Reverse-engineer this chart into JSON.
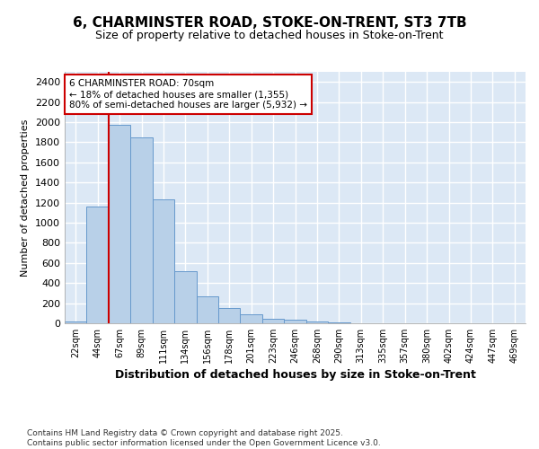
{
  "title_line1": "6, CHARMINSTER ROAD, STOKE-ON-TRENT, ST3 7TB",
  "title_line2": "Size of property relative to detached houses in Stoke-on-Trent",
  "xlabel": "Distribution of detached houses by size in Stoke-on-Trent",
  "ylabel": "Number of detached properties",
  "categories": [
    "22sqm",
    "44sqm",
    "67sqm",
    "89sqm",
    "111sqm",
    "134sqm",
    "156sqm",
    "178sqm",
    "201sqm",
    "223sqm",
    "246sqm",
    "268sqm",
    "290sqm",
    "313sqm",
    "335sqm",
    "357sqm",
    "380sqm",
    "402sqm",
    "424sqm",
    "447sqm",
    "469sqm"
  ],
  "values": [
    22,
    1160,
    1970,
    1850,
    1230,
    520,
    270,
    155,
    90,
    45,
    35,
    20,
    8,
    4,
    2,
    1,
    1,
    1,
    1,
    1,
    1
  ],
  "bar_color": "#b8d0e8",
  "bar_edge_color": "#6699cc",
  "vline_x": 1.5,
  "vline_color": "#cc0000",
  "ylim": [
    0,
    2500
  ],
  "yticks": [
    0,
    200,
    400,
    600,
    800,
    1000,
    1200,
    1400,
    1600,
    1800,
    2000,
    2200,
    2400
  ],
  "annotation_text": "6 CHARMINSTER ROAD: 70sqm\n← 18% of detached houses are smaller (1,355)\n80% of semi-detached houses are larger (5,932) →",
  "annotation_box_color": "#ffffff",
  "annotation_border_color": "#cc0000",
  "footer_text": "Contains HM Land Registry data © Crown copyright and database right 2025.\nContains public sector information licensed under the Open Government Licence v3.0.",
  "bg_color": "#ffffff",
  "plot_bg_color": "#dce8f5",
  "grid_color": "#ffffff",
  "title_fontsize": 11,
  "subtitle_fontsize": 9,
  "xlabel_fontsize": 9,
  "ylabel_fontsize": 8
}
